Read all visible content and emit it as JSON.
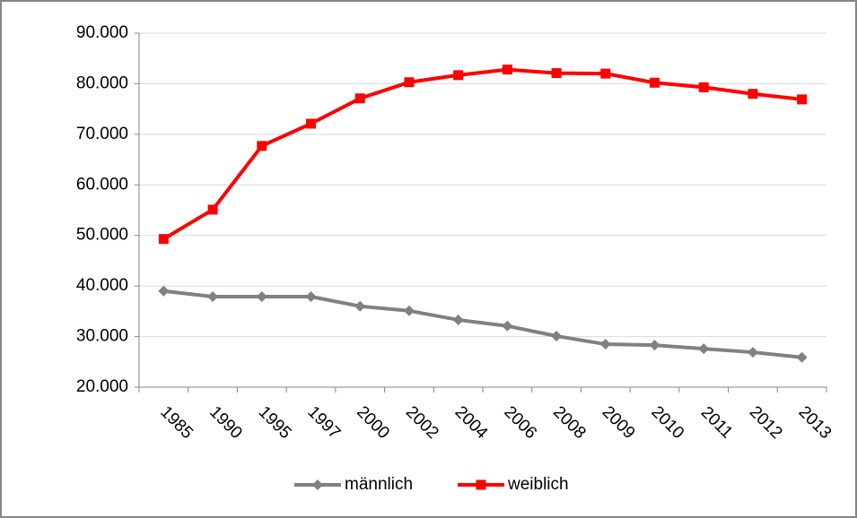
{
  "chart_data": {
    "type": "line",
    "categories": [
      "1985",
      "1990",
      "1995",
      "1997",
      "2000",
      "2002",
      "2004",
      "2006",
      "2008",
      "2009",
      "2010",
      "2011",
      "2012",
      "2013"
    ],
    "series": [
      {
        "name": "männlich",
        "color": "#808080",
        "marker": "diamond",
        "values": [
          39000,
          37900,
          37900,
          37900,
          36000,
          35100,
          33300,
          32100,
          30100,
          28500,
          28300,
          27600,
          26900,
          25900
        ]
      },
      {
        "name": "weiblich",
        "color": "#ff0000",
        "marker": "square",
        "values": [
          49300,
          55100,
          67700,
          72100,
          77100,
          80300,
          81700,
          82800,
          82100,
          82000,
          80200,
          79300,
          78000,
          76900
        ]
      }
    ],
    "ylim": [
      20000,
      90000
    ],
    "yticks": [
      {
        "value": 20000,
        "label": "20.000"
      },
      {
        "value": 30000,
        "label": "30.000"
      },
      {
        "value": 40000,
        "label": "40.000"
      },
      {
        "value": 50000,
        "label": "50.000"
      },
      {
        "value": 60000,
        "label": "60.000"
      },
      {
        "value": 70000,
        "label": "70.000"
      },
      {
        "value": 80000,
        "label": "80.000"
      },
      {
        "value": 90000,
        "label": "90.000"
      }
    ],
    "grid": true,
    "legend": "bottom"
  }
}
